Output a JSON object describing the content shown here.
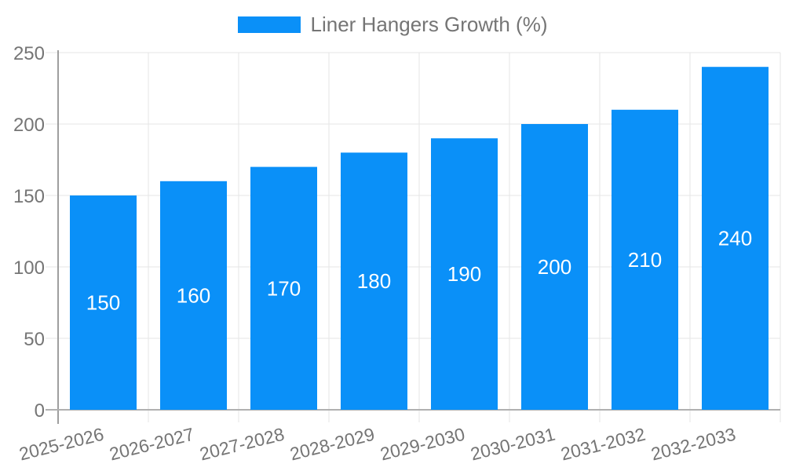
{
  "chart_data": {
    "type": "bar",
    "title": "",
    "legend_position": "top",
    "categories": [
      "2025-2026",
      "2026-2027",
      "2027-2028",
      "2028-2029",
      "2029-2030",
      "2030-2031",
      "2031-2032",
      "2032-2033"
    ],
    "series": [
      {
        "name": "Liner Hangers Growth (%)",
        "color": "#0a90f8",
        "values": [
          150,
          160,
          170,
          180,
          190,
          200,
          210,
          240
        ]
      }
    ],
    "bar_labels_shown": true,
    "yticks": [
      0,
      50,
      100,
      150,
      200,
      250
    ],
    "ylim": [
      0,
      250
    ],
    "grid": true,
    "xlabel": "",
    "ylabel": "",
    "colors": {
      "bar": "#0a90f8",
      "bar_label_text": "#ffffff",
      "axis_text": "#757575",
      "gridline": "#e5e5e5",
      "y_axis_line": "#9e9e9e",
      "x_axis_line": "#b0b0b0",
      "background": "#ffffff"
    }
  }
}
